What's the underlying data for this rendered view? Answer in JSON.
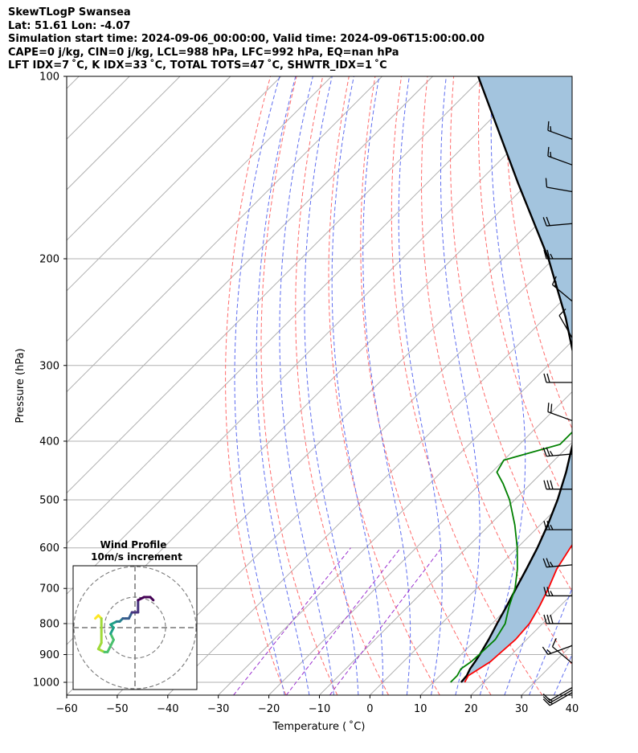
{
  "header": {
    "line1": "SkewTLogP Swansea",
    "line2": "Lat: 51.61   Lon: -4.07",
    "line3": "Simulation start time: 2024-09-06_00:00:00, Valid time: 2024-09-06T15:00:00.00",
    "line4": "CAPE=0 j/kg, CIN=0 j/kg, LCL=988 hPa, LFC=992 hPa, EQ=nan hPa",
    "line5": "LFT IDX=7 ˚C, K IDX=33 ˚C, TOTAL TOTS=47 ˚C, SHWTR_IDX=1 ˚C"
  },
  "colors": {
    "temperature": "#ff0000",
    "dewpoint": "#008000",
    "parcel": "#000000",
    "fill": "#a3c4de",
    "dry_adiabat": "#ff6b6b",
    "moist_adiabat": "#5f6ef0",
    "mixing_ratio": "#9a2fcf",
    "isotherm": "#b0b0b0"
  },
  "chart_data": {
    "type": "skewt",
    "xlabel": "Temperature ( ˚C)",
    "ylabel": "Pressure (hPa)",
    "xlim": [
      -60,
      40
    ],
    "ylim": [
      1050,
      100
    ],
    "xticks": [
      -60,
      -50,
      -40,
      -30,
      -20,
      -10,
      0,
      10,
      20,
      30,
      40
    ],
    "yticks": [
      100,
      200,
      300,
      400,
      500,
      600,
      700,
      800,
      900,
      1000
    ],
    "temperature": [
      [
        1000,
        16.2
      ],
      [
        975,
        15.6
      ],
      [
        950,
        16.4
      ],
      [
        925,
        17.2
      ],
      [
        900,
        17.4
      ],
      [
        850,
        17.8
      ],
      [
        800,
        17.4
      ],
      [
        750,
        16.0
      ],
      [
        700,
        14.2
      ],
      [
        650,
        12.0
      ],
      [
        600,
        10.5
      ],
      [
        550,
        9.0
      ],
      [
        500,
        6.5
      ],
      [
        450,
        3.5
      ],
      [
        400,
        1.3
      ],
      [
        375,
        -1.5
      ],
      [
        350,
        -4.5
      ],
      [
        325,
        -8.0
      ],
      [
        300,
        -12.0
      ],
      [
        275,
        -16.5
      ],
      [
        250,
        -21.5
      ],
      [
        235,
        -26.0
      ],
      [
        225,
        -28.0
      ],
      [
        215,
        -30.5
      ],
      [
        200,
        -35.5
      ],
      [
        185,
        -41.0
      ],
      [
        170,
        -46.0
      ],
      [
        155,
        -51.0
      ],
      [
        140,
        -56.5
      ],
      [
        130,
        -60.5
      ],
      [
        115,
        -66.5
      ],
      [
        100,
        -74.0
      ]
    ],
    "dewpoint": [
      [
        1000,
        13.4
      ],
      [
        975,
        13.4
      ],
      [
        950,
        12.8
      ],
      [
        925,
        13.4
      ],
      [
        900,
        13.6
      ],
      [
        850,
        13.8
      ],
      [
        800,
        12.6
      ],
      [
        750,
        10.0
      ],
      [
        700,
        7.6
      ],
      [
        650,
        4.2
      ],
      [
        600,
        0.0
      ],
      [
        550,
        -5.0
      ],
      [
        500,
        -11.0
      ],
      [
        470,
        -15.5
      ],
      [
        450,
        -19.0
      ],
      [
        430,
        -20.0
      ],
      [
        405,
        -12.0
      ],
      [
        380,
        -12.0
      ],
      [
        360,
        -13.5
      ],
      [
        330,
        -17.5
      ],
      [
        300,
        -22.0
      ],
      [
        270,
        -27.5
      ],
      [
        250,
        -31.0
      ],
      [
        230,
        -34.5
      ],
      [
        210,
        -36.5
      ],
      [
        200,
        -38.5
      ],
      [
        185,
        -40.0
      ],
      [
        170,
        -45.0
      ],
      [
        155,
        -53.0
      ],
      [
        145,
        -62.0
      ],
      [
        130,
        -65.5
      ],
      [
        100,
        -78.0
      ]
    ],
    "parcel": [
      [
        1000,
        15.5
      ],
      [
        975,
        15.3
      ],
      [
        950,
        14.6
      ],
      [
        925,
        14.2
      ],
      [
        900,
        13.7
      ],
      [
        850,
        12.5
      ],
      [
        800,
        11.0
      ],
      [
        750,
        9.5
      ],
      [
        700,
        7.8
      ],
      [
        650,
        6.0
      ],
      [
        600,
        4.0
      ],
      [
        550,
        1.5
      ],
      [
        500,
        -1.5
      ],
      [
        450,
        -5.3
      ],
      [
        400,
        -10.0
      ],
      [
        350,
        -16.5
      ],
      [
        300,
        -24.5
      ],
      [
        250,
        -36.0
      ],
      [
        200,
        -51.0
      ],
      [
        150,
        -72.0
      ],
      [
        100,
        -101.0
      ]
    ],
    "dry_adiabats_theta_K": [
      253,
      263,
      273,
      283,
      293,
      303,
      313,
      323,
      333,
      343,
      353,
      363,
      373,
      383,
      393,
      403,
      413,
      423,
      433,
      443,
      453
    ],
    "moist_adiabats_T1000_C": [
      -20,
      -15,
      -10,
      -5,
      0,
      5,
      10,
      15,
      20,
      25,
      30,
      35,
      40
    ],
    "mixing_ratio_lines_gkg": [
      0.4,
      1,
      2
    ],
    "winds": [
      {
        "p": 1040,
        "speed_kt": 15,
        "dir": 240
      },
      {
        "p": 1030,
        "speed_kt": 15,
        "dir": 240
      },
      {
        "p": 1020,
        "speed_kt": 10,
        "dir": 240
      },
      {
        "p": 930,
        "speed_kt": 10,
        "dir": 310
      },
      {
        "p": 870,
        "speed_kt": 15,
        "dir": 250
      },
      {
        "p": 800,
        "speed_kt": 30,
        "dir": 270
      },
      {
        "p": 720,
        "speed_kt": 25,
        "dir": 270
      },
      {
        "p": 640,
        "speed_kt": 25,
        "dir": 265
      },
      {
        "p": 560,
        "speed_kt": 25,
        "dir": 270
      },
      {
        "p": 480,
        "speed_kt": 30,
        "dir": 270
      },
      {
        "p": 420,
        "speed_kt": 25,
        "dir": 265
      },
      {
        "p": 370,
        "speed_kt": 20,
        "dir": 290
      },
      {
        "p": 320,
        "speed_kt": 20,
        "dir": 270
      },
      {
        "p": 270,
        "speed_kt": 10,
        "dir": 330
      },
      {
        "p": 235,
        "speed_kt": 15,
        "dir": 310
      },
      {
        "p": 200,
        "speed_kt": 25,
        "dir": 270
      },
      {
        "p": 175,
        "speed_kt": 20,
        "dir": 265
      },
      {
        "p": 155,
        "speed_kt": 10,
        "dir": 280
      },
      {
        "p": 140,
        "speed_kt": 15,
        "dir": 290
      },
      {
        "p": 127,
        "speed_kt": 15,
        "dir": 290
      }
    ],
    "hodograph": {
      "title": "Wind Profile",
      "subtitle": "10m/s increment",
      "points_ms": [
        [
          -13,
          3
        ],
        [
          -12,
          4
        ],
        [
          -11,
          3
        ],
        [
          -11,
          -5
        ],
        [
          -12,
          -7
        ],
        [
          -10,
          -8
        ],
        [
          -9,
          -8
        ],
        [
          -7,
          -4
        ],
        [
          -8,
          -2
        ],
        [
          -7,
          0
        ],
        [
          -8,
          1
        ],
        [
          -6,
          2
        ],
        [
          -5,
          2
        ],
        [
          -4,
          3
        ],
        [
          -3,
          3
        ],
        [
          -2,
          3
        ],
        [
          -1,
          5
        ],
        [
          0,
          5
        ],
        [
          1,
          5
        ],
        [
          1,
          9
        ],
        [
          3,
          10
        ],
        [
          5,
          10
        ],
        [
          6,
          9
        ]
      ]
    }
  }
}
